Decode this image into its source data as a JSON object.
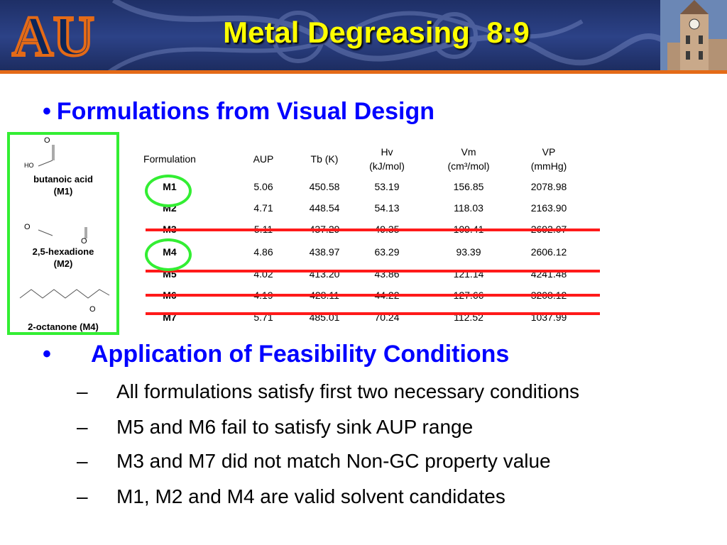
{
  "slide": {
    "title": "Metal Degreasing  8:9",
    "logo_text": "AU",
    "colors": {
      "title": "#ffff00",
      "bullet": "#0000ff",
      "strike": "#ff1a1a",
      "highlight": "#33ee33",
      "banner": "#2c4287",
      "banner_stripe": "#e46a17"
    }
  },
  "bullet1": {
    "marker": "•",
    "text": "Formulations from Visual Design"
  },
  "molecules": {
    "m1": {
      "label_line1": "butanoic acid",
      "label_line2": "(M1)",
      "atom_o": "O",
      "atom_ho": "HO"
    },
    "m2": {
      "label_line1": "2,5-hexadione",
      "label_line2": "(M2)",
      "atom_o1": "O",
      "atom_o2": "O"
    },
    "m4": {
      "label": "2-octanone (M4)",
      "atom_o": "O"
    }
  },
  "table": {
    "headers": [
      {
        "line1": "Formulation",
        "line2": ""
      },
      {
        "line1": "AUP",
        "line2": ""
      },
      {
        "line1": "Tb (K)",
        "line2": ""
      },
      {
        "line1": "Hv",
        "line2": "(kJ/mol)"
      },
      {
        "line1": "Vm",
        "line2": "(cm³/mol)"
      },
      {
        "line1": "VP",
        "line2": "(mmHg)"
      }
    ],
    "rows": [
      {
        "name": "M1",
        "aup": "5.06",
        "tb": "450.58",
        "hv": "53.19",
        "vm": "156.85",
        "vp": "2078.98"
      },
      {
        "name": "M2",
        "aup": "4.71",
        "tb": "448.54",
        "hv": "54.13",
        "vm": "118.03",
        "vp": "2163.90"
      },
      {
        "name": "M3",
        "aup": "5.11",
        "tb": "437.29",
        "hv": "49.35",
        "vm": "109.41",
        "vp": "2692.07"
      },
      {
        "name": "M4",
        "aup": "4.86",
        "tb": "438.97",
        "hv": "63.29",
        "vm": "93.39",
        "vp": "2606.12"
      },
      {
        "name": "M5",
        "aup": "4.02",
        "tb": "413.20",
        "hv": "43.86",
        "vm": "121.14",
        "vp": "4241.48"
      },
      {
        "name": "M6",
        "aup": "4.19",
        "tb": "428.11",
        "hv": "44.22",
        "vm": "127.66",
        "vp": "3208.12"
      },
      {
        "name": "M7",
        "aup": "5.71",
        "tb": "485.01",
        "hv": "70.24",
        "vm": "112.52",
        "vp": "1037.99"
      }
    ]
  },
  "bullet2": {
    "marker": "•",
    "text": "Application of Feasibility Conditions",
    "dash": "–",
    "items": [
      "All formulations satisfy first two necessary conditions",
      "M5 and M6 fail to satisfy sink AUP range",
      "M3 and M7 did not match Non-GC property value",
      "M1, M2 and M4 are valid solvent candidates"
    ]
  }
}
